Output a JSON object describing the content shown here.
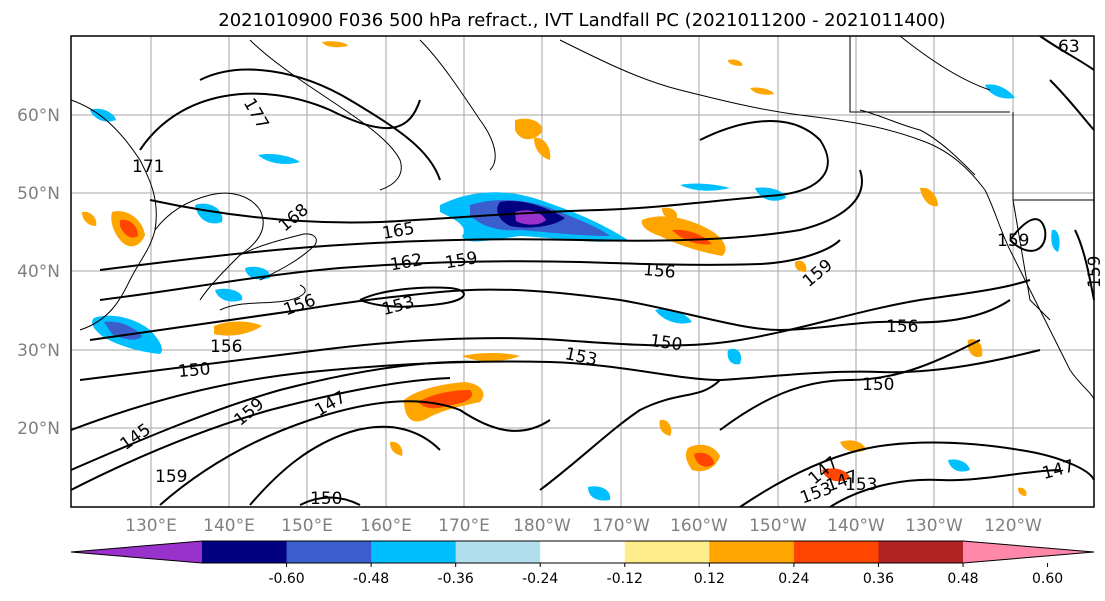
{
  "title": "2021010900 F036 500 hPa refract., IVT Landfall PC (2021011200 - 2021011400)",
  "lat_labels": [
    "60°N",
    "50°N",
    "40°N",
    "30°N",
    "20°N"
  ],
  "lon_labels": [
    "130°E",
    "140°E",
    "150°E",
    "160°E",
    "170°E",
    "180°W",
    "170°W",
    "160°W",
    "150°W",
    "140°W",
    "130°W",
    "120°W"
  ],
  "contour_labels": [
    "171",
    "177",
    "168",
    "165",
    "162",
    "159",
    "156",
    "153",
    "150",
    "147",
    "145",
    "159",
    "156",
    "153",
    "150",
    "147",
    "150",
    "159",
    "156",
    "159",
    "153",
    "147",
    "147",
    "63",
    "159",
    "153",
    "156",
    "150",
    "159"
  ],
  "colorbar": {
    "colors": [
      "#9932cc",
      "#000080",
      "#3a5fcd",
      "#00bfff",
      "#b2dfee",
      "#ffffff",
      "#ffec8b",
      "#ffa500",
      "#ff4500",
      "#b22222",
      "#ff88aa"
    ],
    "tick_labels": [
      "-0.60",
      "-0.48",
      "-0.36",
      "-0.24",
      "-0.12",
      "0.12",
      "0.24",
      "0.36",
      "0.48",
      "0.60"
    ]
  }
}
